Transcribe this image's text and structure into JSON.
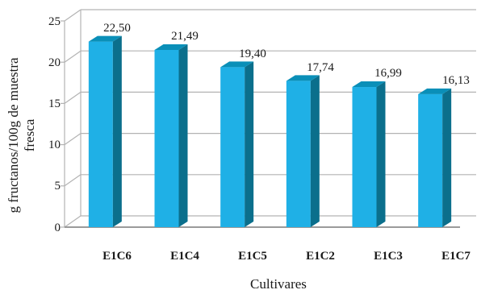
{
  "chart_data": {
    "type": "bar",
    "categories": [
      "E1C6",
      "E1C4",
      "E1C5",
      "E1C2",
      "E1C3",
      "E1C7"
    ],
    "values": [
      22.5,
      21.49,
      19.4,
      17.74,
      16.99,
      16.13
    ],
    "value_labels": [
      "22,50",
      "21,49",
      "19,40",
      "17,74",
      "16,99",
      "16,13"
    ],
    "xlabel": "Cultivares",
    "ylabel_lines": [
      "g fructanos/100g de muestra",
      "fresca"
    ],
    "ylim": [
      0,
      25
    ],
    "yticks": [
      "0",
      "5",
      "10",
      "15",
      "20",
      "25"
    ],
    "grid": true,
    "style": "3d-column",
    "colors": {
      "bar_front": "#1fb0e6",
      "bar_side": "#0b6f8c",
      "bar_top": "#0a8fb8",
      "grid": "#b3b3b3",
      "floor": "#9a9a9a"
    }
  }
}
